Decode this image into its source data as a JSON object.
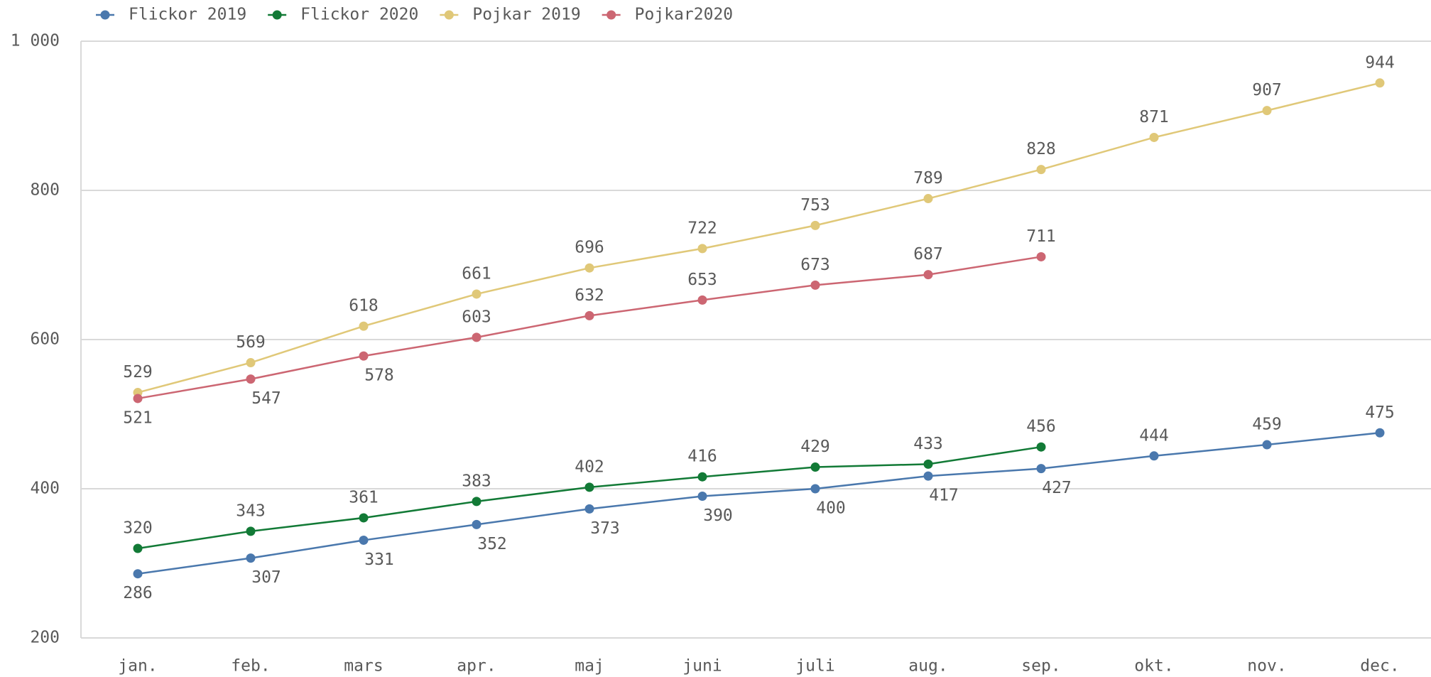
{
  "chart_data": {
    "type": "line",
    "categories": [
      "jan.",
      "feb.",
      "mars",
      "apr.",
      "maj",
      "juni",
      "juli",
      "aug.",
      "sep.",
      "okt.",
      "nov.",
      "dec."
    ],
    "series": [
      {
        "name": "Flickor 2019",
        "color": "#4a78ad",
        "values": [
          286,
          307,
          331,
          352,
          373,
          390,
          400,
          417,
          427,
          444,
          459,
          475
        ]
      },
      {
        "name": "Flickor 2020",
        "color": "#127a36",
        "values": [
          320,
          343,
          361,
          383,
          402,
          416,
          429,
          433,
          456,
          null,
          null,
          null
        ]
      },
      {
        "name": "Pojkar 2019",
        "color": "#e0c878",
        "values": [
          529,
          569,
          618,
          661,
          696,
          722,
          753,
          789,
          828,
          871,
          907,
          944
        ]
      },
      {
        "name": "Pojkar2020",
        "color": "#cc6672",
        "values": [
          521,
          547,
          578,
          603,
          632,
          653,
          673,
          687,
          711,
          null,
          null,
          null
        ]
      }
    ],
    "ylim": [
      200,
      1000
    ],
    "yticks": [
      200,
      400,
      600,
      800,
      {
        "value": 1000,
        "label": "1 000"
      }
    ],
    "grid": true,
    "legend": "top-left"
  }
}
